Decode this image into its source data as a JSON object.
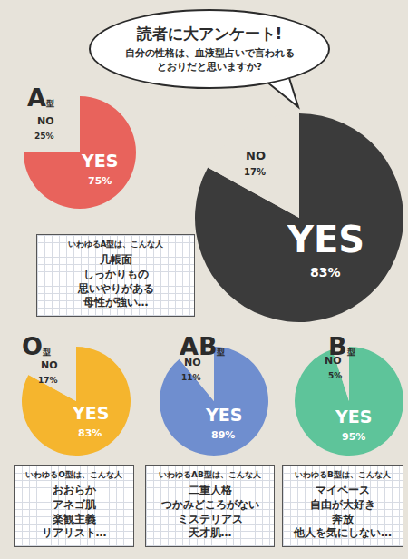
{
  "chart_data": [
    {
      "type": "pie",
      "title": "読者に大アンケート!",
      "subtitle": "自分の性格は、血液型占いで言われるとおりだと思いますか?",
      "categories": [
        "YES",
        "NO"
      ],
      "values": [
        83,
        17
      ],
      "value_labels": [
        "83%",
        "17%"
      ],
      "colors": [
        "#3b3b3b",
        "#e7e3da"
      ],
      "data_labels": true
    },
    {
      "type": "pie",
      "title": "A型",
      "categories": [
        "YES",
        "NO"
      ],
      "values": [
        75,
        25
      ],
      "value_labels": [
        "75%",
        "25%"
      ],
      "colors": [
        "#e8635c",
        "#e7e3da"
      ],
      "data_labels": true,
      "annotations": [
        "いわゆるA型は、こんな人",
        "几帳面",
        "しっかりもの",
        "思いやりがある",
        "母性が強い…"
      ]
    },
    {
      "type": "pie",
      "title": "O型",
      "categories": [
        "YES",
        "NO"
      ],
      "values": [
        83,
        17
      ],
      "value_labels": [
        "83%",
        "17%"
      ],
      "colors": [
        "#f5b52e",
        "#e7e3da"
      ],
      "data_labels": true,
      "annotations": [
        "いわゆるO型は、こんな人",
        "おおらか",
        "アネゴ肌",
        "楽観主義",
        "リアリスト…"
      ]
    },
    {
      "type": "pie",
      "title": "AB型",
      "categories": [
        "YES",
        "NO"
      ],
      "values": [
        89,
        11
      ],
      "value_labels": [
        "89%",
        "11%"
      ],
      "colors": [
        "#6f8ecf",
        "#e7e3da"
      ],
      "data_labels": true,
      "annotations": [
        "いわゆるAB型は、こんな人",
        "二重人格",
        "つかみどころがない",
        "ミステリアス",
        "天才肌…"
      ]
    },
    {
      "type": "pie",
      "title": "B型",
      "categories": [
        "YES",
        "NO"
      ],
      "values": [
        95,
        5
      ],
      "value_labels": [
        "95%",
        "5%"
      ],
      "colors": [
        "#5ec49a",
        "#e7e3da"
      ],
      "data_labels": true,
      "annotations": [
        "いわゆるB型は、こんな人",
        "マイペース",
        "自由が大好き",
        "奔放",
        "他人を気にしない…"
      ]
    }
  ]
}
